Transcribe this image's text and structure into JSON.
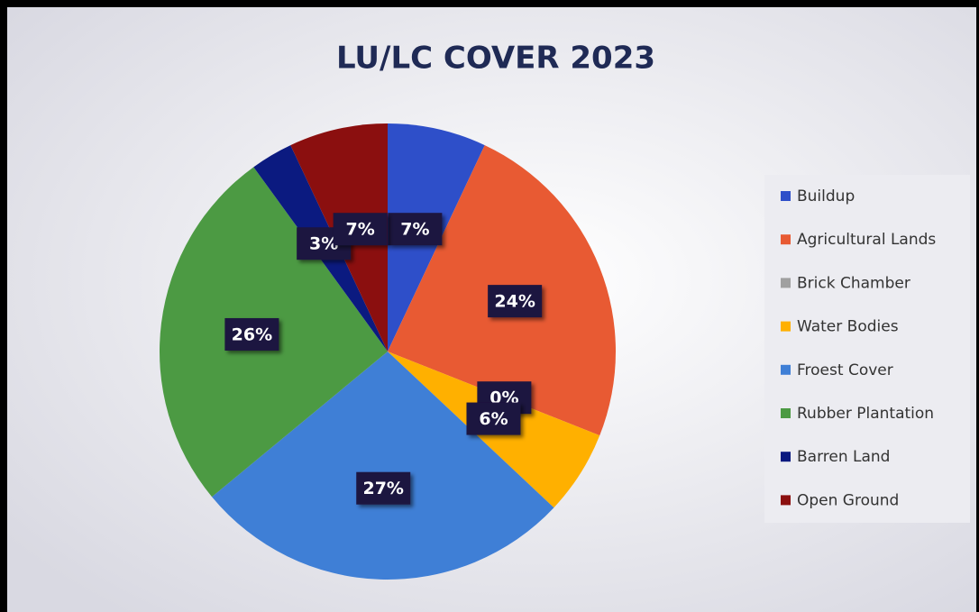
{
  "chart_data": {
    "type": "pie",
    "title": "LU/LC COVER 2023",
    "categories": [
      "Buildup",
      "Agricultural Lands",
      "Brick Chamber",
      "Water Bodies",
      "Froest Cover",
      "Rubber Plantation",
      "Barren Land",
      "Open Ground"
    ],
    "values": [
      7,
      24,
      0,
      6,
      27,
      26,
      3,
      7
    ],
    "value_labels": [
      "7%",
      "24%",
      "0%",
      "6%",
      "27%",
      "26%",
      "3%",
      "7%"
    ],
    "colors": [
      "#2e4fc9",
      "#e85a33",
      "#a0a0a0",
      "#ffb000",
      "#3f7fd6",
      "#4c9a43",
      "#0b1a80",
      "#8b0f0f"
    ],
    "legend": "right"
  }
}
